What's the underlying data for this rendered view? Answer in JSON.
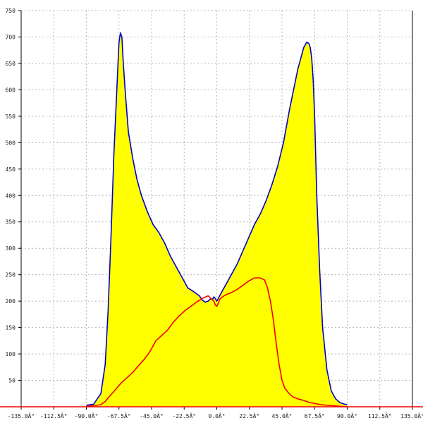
{
  "chart_data": {
    "type": "area",
    "title": "",
    "xlabel": "",
    "ylabel": "",
    "xlim": [
      -135,
      135
    ],
    "ylim": [
      0,
      750
    ],
    "grid": true,
    "legend": "none",
    "x_ticks": [
      {
        "value": -135,
        "label": "-135.0Â°"
      },
      {
        "value": -112.5,
        "label": "-112.5Â°"
      },
      {
        "value": -90,
        "label": "-90.0Â°"
      },
      {
        "value": -67.5,
        "label": "-67.5Â°"
      },
      {
        "value": -45,
        "label": "-45.0Â°"
      },
      {
        "value": -22.5,
        "label": "-22.5Â°"
      },
      {
        "value": 0,
        "label": "0.0Â°"
      },
      {
        "value": 22.5,
        "label": "22.5Â°"
      },
      {
        "value": 45,
        "label": "45.0Â°"
      },
      {
        "value": 67.5,
        "label": "67.5Â°"
      },
      {
        "value": 90,
        "label": "90.0Â°"
      },
      {
        "value": 112.5,
        "label": "112.5Â°"
      },
      {
        "value": 135,
        "label": "135.0Â°"
      }
    ],
    "y_ticks": [
      {
        "value": 50,
        "label": "50"
      },
      {
        "value": 100,
        "label": "100"
      },
      {
        "value": 150,
        "label": "150"
      },
      {
        "value": 200,
        "label": "200"
      },
      {
        "value": 250,
        "label": "250"
      },
      {
        "value": 300,
        "label": "300"
      },
      {
        "value": 350,
        "label": "350"
      },
      {
        "value": 400,
        "label": "400"
      },
      {
        "value": 450,
        "label": "450"
      },
      {
        "value": 500,
        "label": "500"
      },
      {
        "value": 550,
        "label": "550"
      },
      {
        "value": 600,
        "label": "600"
      },
      {
        "value": 650,
        "label": "650"
      },
      {
        "value": 700,
        "label": "700"
      },
      {
        "value": 750,
        "label": "750"
      }
    ],
    "series": [
      {
        "color": "#0000cc",
        "fill": "#ffff00",
        "x": [
          -90,
          -85,
          -80,
          -77,
          -75,
          -73,
          -71,
          -69,
          -67.5,
          -66.5,
          -65.5,
          -64.5,
          -63,
          -61,
          -58,
          -55,
          -52,
          -48,
          -44,
          -40,
          -36,
          -32,
          -28,
          -24,
          -20,
          -16,
          -12,
          -10,
          -8,
          -6,
          -4,
          -3,
          -2,
          -1,
          0,
          1,
          2,
          4,
          6,
          8,
          10,
          14,
          18,
          22,
          26,
          30,
          34,
          38,
          42,
          46,
          50,
          53,
          56,
          58,
          60,
          62,
          63.5,
          64.5,
          65.5,
          66.5,
          67.5,
          69,
          71,
          73,
          76,
          79,
          82,
          85,
          88,
          90
        ],
        "values": [
          3,
          5,
          25,
          80,
          180,
          320,
          480,
          600,
          690,
          708,
          700,
          650,
          590,
          520,
          470,
          430,
          400,
          370,
          345,
          330,
          310,
          285,
          265,
          245,
          225,
          218,
          210,
          202,
          198,
          200,
          205,
          203,
          208,
          205,
          200,
          205,
          210,
          220,
          230,
          240,
          250,
          270,
          295,
          320,
          345,
          365,
          390,
          420,
          455,
          500,
          560,
          600,
          640,
          660,
          680,
          690,
          688,
          680,
          660,
          620,
          550,
          400,
          260,
          150,
          70,
          30,
          15,
          8,
          5,
          4
        ]
      },
      {
        "color": "#ee0000",
        "x": [
          -90,
          -85,
          -80,
          -77,
          -74,
          -70,
          -66,
          -62,
          -58,
          -54,
          -50,
          -46,
          -42,
          -38,
          -34,
          -30,
          -26,
          -22,
          -18,
          -14,
          -10,
          -6,
          -4,
          -2,
          -1,
          0,
          1,
          2,
          3,
          5,
          7,
          10,
          14,
          18,
          22,
          26,
          30,
          33,
          35,
          37,
          39,
          41,
          43,
          45,
          47,
          49,
          51,
          53,
          56,
          60,
          64,
          68,
          72,
          76,
          80,
          85,
          90
        ],
        "values": [
          1,
          2,
          4,
          10,
          20,
          32,
          45,
          55,
          65,
          78,
          90,
          105,
          125,
          135,
          145,
          160,
          172,
          182,
          190,
          198,
          205,
          210,
          205,
          200,
          193,
          190,
          196,
          203,
          206,
          210,
          213,
          216,
          222,
          230,
          238,
          244,
          244,
          240,
          225,
          200,
          165,
          120,
          80,
          50,
          35,
          28,
          22,
          18,
          15,
          12,
          8,
          6,
          4,
          3,
          2,
          1,
          0
        ]
      }
    ]
  }
}
